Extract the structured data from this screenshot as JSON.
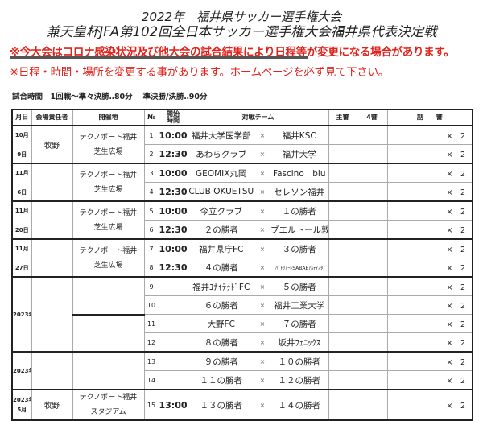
{
  "title1": "2022年　福井県サッカー選手権大会",
  "title2": "兼天皇杯JFA第102回全日本サッカー選手権大会福井県代表決定戦",
  "notice1": "※今大会はコロナ感染状況及び他大会の試合結果により日程等が変更になる場合があります。",
  "notice2": "※日程・時間・場所を変更する事があります。ホームページを必ず見て下さい。",
  "match_time": "試合時間　1回戦～準々決勝‥80分　 準決勝/決勝‥90分",
  "headers": {
    "date": "月日",
    "manager": "会場責任者",
    "venue": "開催地",
    "no": "№",
    "time1": "開始",
    "time2": "時間",
    "teams": "対戦チーム",
    "ref": "主審",
    "fourth": "4審",
    "assistant": "副　　審"
  },
  "groups": [
    {
      "date1": "10月",
      "date2": "9日",
      "manager": "牧野",
      "venue1": "テクノポート福井",
      "venue2": "芝生広場"
    },
    {
      "date1": "11月",
      "date2": "6日",
      "manager": "",
      "venue1": "テクノポート福井",
      "venue2": "芝生広場"
    },
    {
      "date1": "11月",
      "date2": "20日",
      "manager": "",
      "venue1": "テクノポート福井",
      "venue2": "芝生広場"
    },
    {
      "date1": "11月",
      "date2": "27日",
      "manager": "",
      "venue1": "テクノポート福井",
      "venue2": "芝生広場"
    },
    {
      "date1": "2023年",
      "date2": "",
      "manager": "",
      "venue1": "",
      "venue2": ""
    },
    {
      "date1": "2023年",
      "date2": "",
      "manager": "",
      "venue1": "",
      "venue2": ""
    },
    {
      "date1": "2023年",
      "date2": "5月",
      "manager": "牧野",
      "venue1": "テクノポート福井",
      "venue2": "スタジアム"
    }
  ],
  "matches": [
    {
      "no": "1",
      "time": "10:00",
      "home": "福井大学医学部",
      "vs": "×",
      "away": "福井KSC",
      "assist": "×　2"
    },
    {
      "no": "2",
      "time": "12:30",
      "home": "あわらクラブ",
      "vs": "×",
      "away": "福井大学",
      "assist": "×　2"
    },
    {
      "no": "3",
      "time": "10:00",
      "home": "GEOMIX丸岡",
      "vs": "×",
      "away": "Fascino　blu",
      "assist": "×　2"
    },
    {
      "no": "4",
      "time": "12:30",
      "home": "CLUB OKUETSU",
      "vs": "×",
      "away": "セレソン福井",
      "assist": "×　2"
    },
    {
      "no": "5",
      "time": "10:00",
      "home": "今立クラブ",
      "vs": "×",
      "away": "１の勝者",
      "assist": "×　2"
    },
    {
      "no": "6",
      "time": "12:30",
      "home": "２の勝者",
      "vs": "×",
      "away": "ブエルトール敦賀",
      "assist": "×　2"
    },
    {
      "no": "7",
      "time": "10:00",
      "home": "福井県庁FC",
      "vs": "×",
      "away": "３の勝者",
      "assist": "×　2"
    },
    {
      "no": "8",
      "time": "12:30",
      "home": "４の勝者",
      "vs": "×",
      "away": "ﾊﾞﾄﾘｱｰﾚSABAEｱﾙﾃｨｽﾀ",
      "assist": "×　2"
    },
    {
      "no": "9",
      "time": "",
      "home": "福井ﾕﾅｲﾃｯﾄﾞFC",
      "vs": "×",
      "away": "５の勝者",
      "assist": "×　2"
    },
    {
      "no": "10",
      "time": "",
      "home": "６の勝者",
      "vs": "×",
      "away": "福井工業大学",
      "assist": "×　2"
    },
    {
      "no": "11",
      "time": "",
      "home": "大野FC",
      "vs": "×",
      "away": "７の勝者",
      "assist": "×　2"
    },
    {
      "no": "12",
      "time": "",
      "home": "８の勝者",
      "vs": "×",
      "away": "坂井ﾌｪﾆｯｸｽ",
      "assist": "×　2"
    },
    {
      "no": "13",
      "time": "",
      "home": "９の勝者",
      "vs": "×",
      "away": "１０の勝者",
      "assist": "×　2"
    },
    {
      "no": "14",
      "time": "",
      "home": "１１の勝者",
      "vs": "×",
      "away": "１２の勝者",
      "assist": "×　2"
    },
    {
      "no": "15",
      "time": "13:00",
      "home": "１３の勝者",
      "vs": "×",
      "away": "１４の勝者",
      "assist": "×　2"
    }
  ]
}
